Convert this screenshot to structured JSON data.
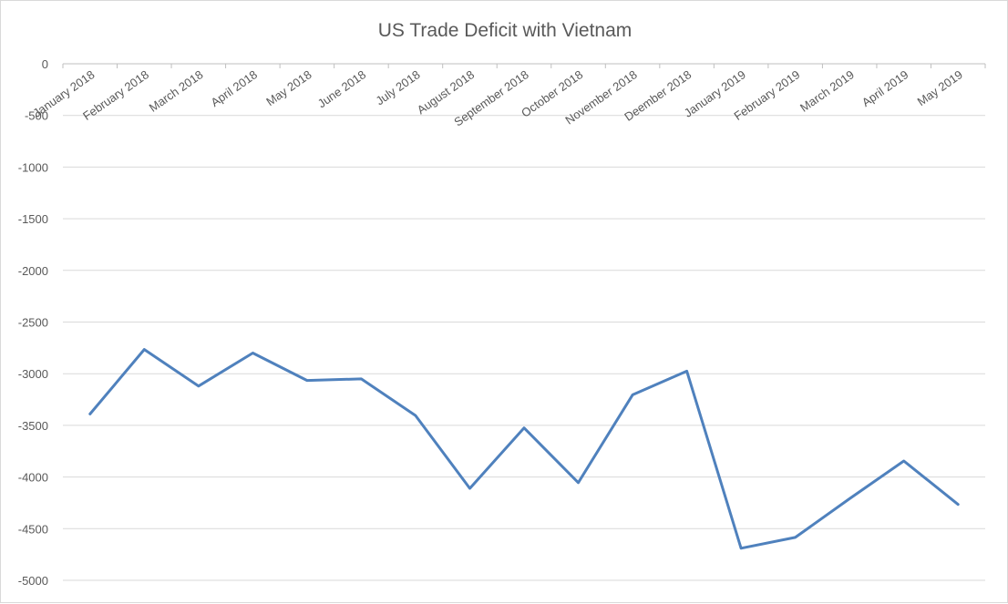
{
  "chart_data": {
    "type": "line",
    "title": "US Trade Deficit with Vietnam",
    "xlabel": "",
    "ylabel": "",
    "categories": [
      "January 2018",
      "February 2018",
      "March 2018",
      "April 2018",
      "May 2018",
      "June 2018",
      "July 2018",
      "August 2018",
      "September 2018",
      "October 2018",
      "November 2018",
      "Deember 2018",
      "January 2019",
      "February 2019",
      "March 2019",
      "April 2019",
      "May 2019"
    ],
    "series": [
      {
        "values": [
          -3390,
          -2765,
          -3120,
          -2800,
          -3065,
          -3050,
          -3405,
          -4110,
          -3525,
          -4055,
          -3205,
          -2975,
          -4690,
          -4585,
          -4210,
          -3845,
          -4265
        ],
        "color": "#4f81bd"
      }
    ],
    "ylim": [
      -5000,
      0
    ],
    "ytick_step": 500,
    "yticks": [
      "0",
      "-500",
      "-1000",
      "-1500",
      "-2000",
      "-2500",
      "-3000",
      "-3500",
      "-4000",
      "-4500",
      "-5000"
    ],
    "x_axis_position": "top",
    "grid": true,
    "legend": "none"
  }
}
